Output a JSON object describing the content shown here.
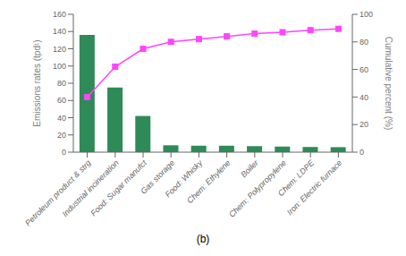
{
  "chart_data": {
    "type": "bar",
    "subtitle": "(b)",
    "y_label": "Emissions rates (tpd¹)",
    "y2_label": "Cumulative percent (%)",
    "categories": [
      "Petroleum product & strg",
      "Industrial incineration",
      "Food: Sugar manufct",
      "Gas storage",
      "Food: Whisky",
      "Chem: Ethylene",
      "Boiler",
      "Chem: Polypropylene",
      "Chem: LDPE",
      "Iron: Electric furnace"
    ],
    "series": [
      {
        "type": "bar",
        "color": "#2e8b57",
        "values": [
          136.0,
          75.0,
          42.0,
          8.0,
          7.5,
          7.5,
          7.0,
          6.5,
          6.0,
          5.8
        ]
      },
      {
        "type": "line",
        "axis": "y2",
        "color": "#ff44ff",
        "marker": "square",
        "values": [
          40.0,
          62.0,
          75.0,
          80.0,
          82.0,
          84.0,
          86.0,
          87.0,
          88.5,
          89.5
        ]
      }
    ],
    "ylim": [
      0.0,
      160.0
    ],
    "yticks": [
      0.0,
      20.0,
      40.0,
      60.0,
      80.0,
      100.0,
      120.0,
      140.0,
      160.0
    ],
    "y2lim": [
      0,
      100
    ],
    "y2ticks": [
      0,
      20,
      40,
      60,
      80,
      100
    ],
    "grid": false
  }
}
